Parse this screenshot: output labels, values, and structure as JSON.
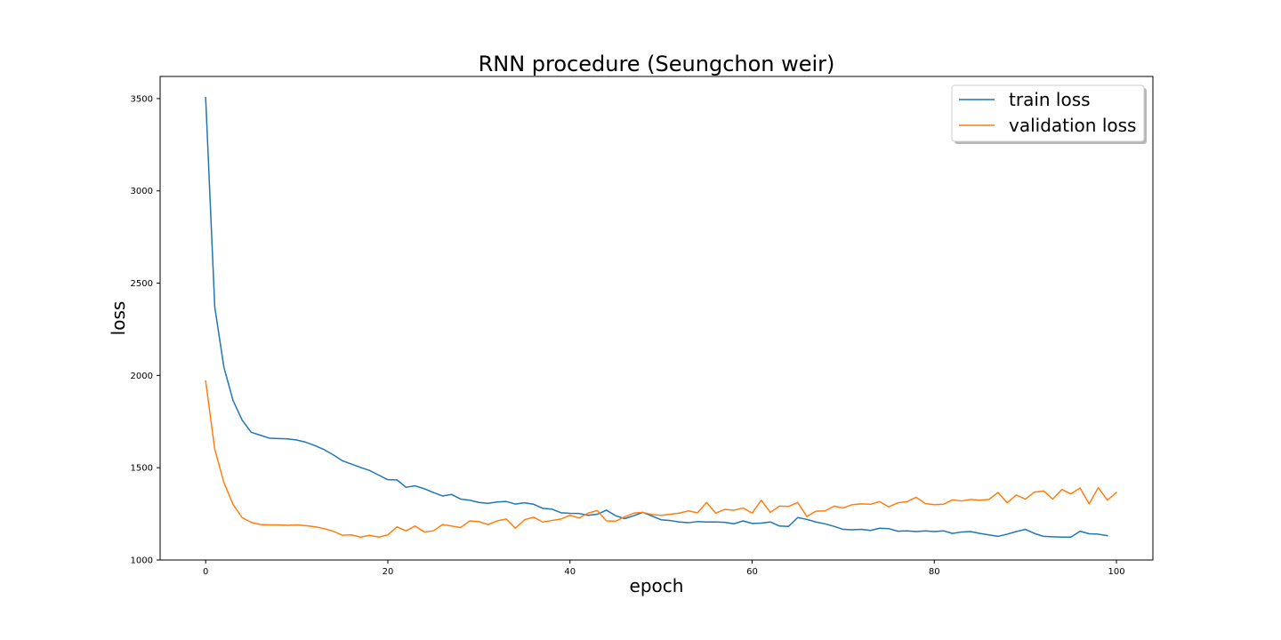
{
  "chart_data": {
    "type": "line",
    "title": "RNN procedure (Seungchon weir)",
    "xlabel": "epoch",
    "ylabel": "loss",
    "xlim": [
      -5,
      104
    ],
    "ylim": [
      1000,
      3620
    ],
    "xticks": [
      0,
      20,
      40,
      60,
      80,
      100
    ],
    "yticks": [
      1000,
      1500,
      2000,
      2500,
      3000,
      3500
    ],
    "legend": "top-right",
    "grid": false,
    "series": [
      {
        "name": "train loss",
        "color": "#1f77b4",
        "values": [
          3505,
          2370,
          2045,
          1865,
          1758,
          1692,
          1676,
          1660,
          1658,
          1656,
          1650,
          1638,
          1620,
          1598,
          1570,
          1538,
          1520,
          1502,
          1485,
          1460,
          1435,
          1434,
          1394,
          1402,
          1386,
          1366,
          1347,
          1355,
          1330,
          1324,
          1312,
          1307,
          1314,
          1317,
          1303,
          1310,
          1302,
          1280,
          1276,
          1256,
          1253,
          1252,
          1242,
          1248,
          1270,
          1240,
          1224,
          1240,
          1258,
          1238,
          1218,
          1214,
          1206,
          1202,
          1208,
          1206,
          1206,
          1204,
          1196,
          1212,
          1198,
          1200,
          1206,
          1184,
          1182,
          1230,
          1220,
          1206,
          1196,
          1182,
          1166,
          1164,
          1166,
          1160,
          1172,
          1170,
          1156,
          1158,
          1154,
          1158,
          1154,
          1158,
          1144,
          1152,
          1154,
          1144,
          1136,
          1128,
          1140,
          1154,
          1166,
          1144,
          1128,
          1126,
          1124,
          1124,
          1156,
          1142,
          1140,
          1132
        ]
      },
      {
        "name": "validation loss",
        "color": "#ff7f0e",
        "values": [
          1970,
          1600,
          1420,
          1302,
          1230,
          1204,
          1192,
          1190,
          1190,
          1188,
          1190,
          1186,
          1180,
          1170,
          1156,
          1134,
          1136,
          1124,
          1134,
          1124,
          1136,
          1180,
          1158,
          1184,
          1152,
          1158,
          1192,
          1184,
          1176,
          1212,
          1208,
          1192,
          1212,
          1222,
          1172,
          1218,
          1232,
          1206,
          1214,
          1222,
          1242,
          1228,
          1254,
          1268,
          1212,
          1210,
          1234,
          1254,
          1258,
          1246,
          1242,
          1248,
          1254,
          1266,
          1256,
          1312,
          1254,
          1274,
          1270,
          1282,
          1254,
          1324,
          1258,
          1292,
          1290,
          1312,
          1236,
          1264,
          1266,
          1292,
          1282,
          1300,
          1304,
          1302,
          1316,
          1288,
          1310,
          1316,
          1340,
          1306,
          1300,
          1302,
          1326,
          1320,
          1328,
          1324,
          1328,
          1366,
          1310,
          1352,
          1330,
          1368,
          1374,
          1330,
          1382,
          1358,
          1390,
          1304,
          1392,
          1324,
          1366
        ]
      }
    ]
  }
}
